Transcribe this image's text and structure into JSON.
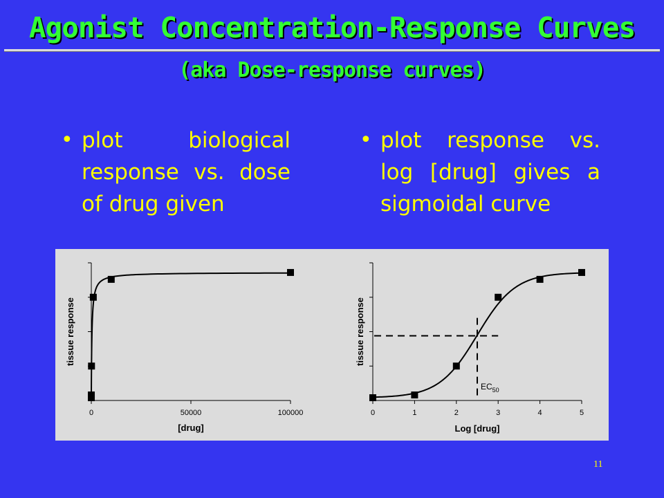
{
  "slide": {
    "title": "Agonist Concentration-Response Curves",
    "subtitle": "(aka Dose-response curves)",
    "bullets": [
      {
        "dot": "•",
        "text": "plot biological response vs. dose of drug given"
      },
      {
        "dot": "•",
        "text": "plot response vs. log [drug] gives a sigmoidal curve"
      }
    ],
    "page_number": "11"
  },
  "colors": {
    "background": "#3535f0",
    "title": "#33ff33",
    "bullet_text": "#ffff00",
    "chart_panel": "#dcdcdc",
    "series": "#000000"
  },
  "chart_data": [
    {
      "type": "line",
      "title": "",
      "xlabel": "[drug]",
      "ylabel": "tissue response",
      "xlim": [
        0,
        100000
      ],
      "ylim": [
        0,
        1
      ],
      "x_ticks": [
        0,
        50000,
        100000
      ],
      "x_tick_labels": [
        "0",
        "50000",
        "100000"
      ],
      "y_ticks": [
        0,
        0.25,
        0.5,
        0.75,
        1
      ],
      "grid": false,
      "series": [
        {
          "x": [
            1,
            10,
            100,
            1000,
            10000,
            100000
          ],
          "y": [
            0.02,
            0.04,
            0.25,
            0.75,
            0.88,
            0.93
          ],
          "marker": "square"
        }
      ],
      "annotations": []
    },
    {
      "type": "line",
      "title": "",
      "xlabel": "Log [drug]",
      "ylabel": "tissue response",
      "xlim": [
        0,
        5
      ],
      "ylim": [
        0,
        1
      ],
      "x_ticks": [
        0,
        1,
        2,
        3,
        4,
        5
      ],
      "x_tick_labels": [
        "0",
        "1",
        "2",
        "3",
        "4",
        "5"
      ],
      "y_ticks": [
        0,
        0.25,
        0.5,
        0.75,
        1
      ],
      "grid": false,
      "series": [
        {
          "x": [
            0,
            1,
            2,
            3,
            4,
            5
          ],
          "y": [
            0.02,
            0.04,
            0.25,
            0.75,
            0.88,
            0.93
          ],
          "marker": "square"
        }
      ],
      "annotations": [
        {
          "text": "EC",
          "subscript": "50",
          "x": 2.5,
          "y": 0.47,
          "style": "dashed crosshair"
        }
      ]
    }
  ]
}
